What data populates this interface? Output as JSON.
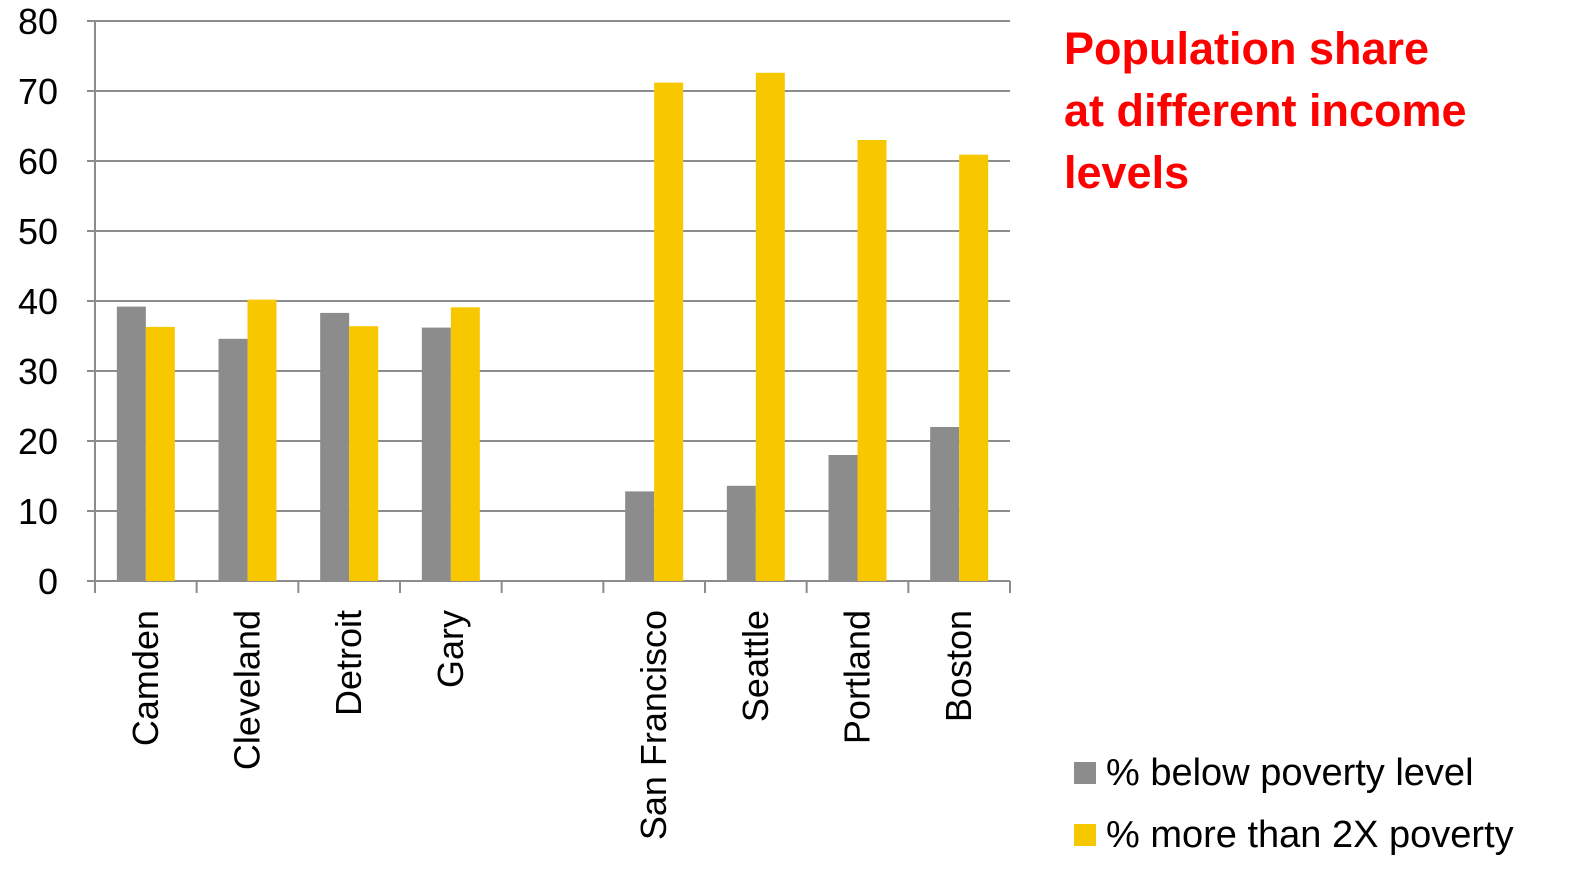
{
  "title_lines": [
    "Population share",
    "at different income",
    "levels"
  ],
  "colors": {
    "title": "#ff0000",
    "series_below": "#8c8c8c",
    "series_above": "#f7c800",
    "grid": "#8c8c8c"
  },
  "legend": [
    {
      "label": "% below poverty level",
      "color": "#8c8c8c"
    },
    {
      "label": "% more than 2X poverty",
      "color": "#f7c800"
    }
  ],
  "chart_data": {
    "type": "bar",
    "title": "",
    "xlabel": "",
    "ylabel": "",
    "ylim": [
      0,
      80
    ],
    "yticks": [
      0,
      10,
      20,
      30,
      40,
      50,
      60,
      70,
      80
    ],
    "grid": true,
    "legend_position": "bottom-right",
    "categories": [
      "Camden",
      "Cleveland",
      "Detroit",
      "Gary",
      "",
      "San Francisco",
      "Seattle",
      "Portland",
      "Boston"
    ],
    "series": [
      {
        "name": "% below poverty level",
        "values": [
          39.2,
          34.6,
          38.3,
          36.2,
          null,
          12.8,
          13.6,
          18.0,
          22.0
        ]
      },
      {
        "name": "% more than 2X poverty",
        "values": [
          36.3,
          40.2,
          36.4,
          39.1,
          null,
          71.2,
          72.6,
          63.0,
          60.9
        ]
      }
    ]
  }
}
